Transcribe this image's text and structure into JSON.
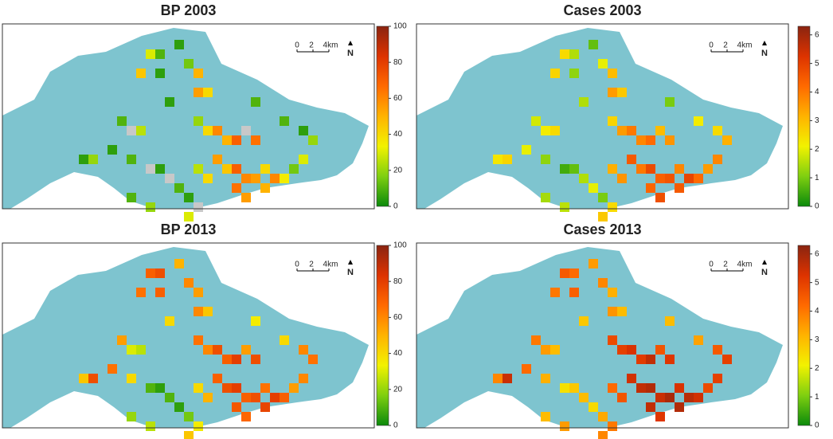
{
  "maps": [
    {
      "title": "BP 2003",
      "ylim": [
        0,
        100
      ],
      "yticks": [
        0,
        20,
        40,
        60,
        80,
        100
      ],
      "scale_labels": [
        "0",
        "2",
        "4km"
      ],
      "north": "N",
      "cells": [
        [
          15,
          2,
          30
        ],
        [
          16,
          2,
          10
        ],
        [
          18,
          1,
          5
        ],
        [
          19,
          3,
          15
        ],
        [
          14,
          4,
          45
        ],
        [
          16,
          4,
          5
        ],
        [
          20,
          4,
          50
        ],
        [
          20,
          6,
          55
        ],
        [
          21,
          6,
          40
        ],
        [
          17,
          7,
          5
        ],
        [
          26,
          7,
          10
        ],
        [
          12,
          9,
          10
        ],
        [
          13,
          10,
          null
        ],
        [
          14,
          10,
          25
        ],
        [
          20,
          9,
          20
        ],
        [
          21,
          10,
          40
        ],
        [
          22,
          10,
          60
        ],
        [
          23,
          11,
          50
        ],
        [
          24,
          11,
          70
        ],
        [
          25,
          10,
          null
        ],
        [
          26,
          11,
          65
        ],
        [
          29,
          9,
          10
        ],
        [
          31,
          10,
          5
        ],
        [
          32,
          11,
          20
        ],
        [
          11,
          12,
          5
        ],
        [
          8,
          13,
          5
        ],
        [
          9,
          13,
          20
        ],
        [
          13,
          13,
          10
        ],
        [
          15,
          14,
          null
        ],
        [
          16,
          14,
          5
        ],
        [
          17,
          15,
          null
        ],
        [
          18,
          16,
          10
        ],
        [
          19,
          17,
          5
        ],
        [
          20,
          18,
          null
        ],
        [
          15,
          18,
          20
        ],
        [
          22,
          13,
          55
        ],
        [
          23,
          14,
          45
        ],
        [
          24,
          14,
          70
        ],
        [
          25,
          15,
          60
        ],
        [
          26,
          15,
          55
        ],
        [
          27,
          14,
          40
        ],
        [
          28,
          15,
          60
        ],
        [
          29,
          15,
          35
        ],
        [
          24,
          16,
          65
        ],
        [
          25,
          17,
          55
        ],
        [
          27,
          16,
          50
        ],
        [
          30,
          14,
          15
        ],
        [
          31,
          13,
          30
        ],
        [
          20,
          14,
          25
        ],
        [
          21,
          15,
          40
        ],
        [
          19,
          19,
          30
        ],
        [
          13,
          17,
          10
        ]
      ]
    },
    {
      "title": "Cases 2003",
      "ylim": [
        0,
        6.3
      ],
      "yticks": [
        0,
        1,
        2,
        3,
        4,
        5,
        6
      ],
      "scale_labels": [
        "0",
        "2",
        "4km"
      ],
      "north": "N",
      "cells": [
        [
          15,
          2,
          2.5
        ],
        [
          16,
          2,
          1.5
        ],
        [
          18,
          1,
          0.8
        ],
        [
          19,
          3,
          2
        ],
        [
          14,
          4,
          2.6
        ],
        [
          16,
          4,
          1.2
        ],
        [
          20,
          4,
          3
        ],
        [
          20,
          6,
          3.5
        ],
        [
          21,
          6,
          2.8
        ],
        [
          17,
          7,
          1.5
        ],
        [
          26,
          7,
          1
        ],
        [
          12,
          9,
          1.8
        ],
        [
          13,
          10,
          2.2
        ],
        [
          14,
          10,
          2.5
        ],
        [
          20,
          9,
          2.6
        ],
        [
          21,
          10,
          3.5
        ],
        [
          22,
          10,
          4
        ],
        [
          23,
          11,
          3.8
        ],
        [
          24,
          11,
          4.2
        ],
        [
          25,
          10,
          3
        ],
        [
          26,
          11,
          3.6
        ],
        [
          29,
          9,
          2.2
        ],
        [
          31,
          10,
          2.5
        ],
        [
          32,
          11,
          3.2
        ],
        [
          11,
          12,
          2
        ],
        [
          8,
          13,
          2.3
        ],
        [
          9,
          13,
          2.6
        ],
        [
          13,
          13,
          1.2
        ],
        [
          15,
          14,
          0.5
        ],
        [
          16,
          14,
          0.8
        ],
        [
          17,
          15,
          1.5
        ],
        [
          18,
          16,
          2
        ],
        [
          19,
          17,
          1
        ],
        [
          20,
          18,
          2.5
        ],
        [
          15,
          18,
          1.6
        ],
        [
          22,
          13,
          4.5
        ],
        [
          23,
          14,
          4
        ],
        [
          24,
          14,
          4.8
        ],
        [
          25,
          15,
          4.4
        ],
        [
          26,
          15,
          4.6
        ],
        [
          27,
          14,
          3.8
        ],
        [
          28,
          15,
          4.9
        ],
        [
          29,
          15,
          4.2
        ],
        [
          24,
          16,
          4.3
        ],
        [
          25,
          17,
          4.7
        ],
        [
          27,
          16,
          4.5
        ],
        [
          30,
          14,
          3.5
        ],
        [
          31,
          13,
          3.8
        ],
        [
          20,
          14,
          3.2
        ],
        [
          21,
          15,
          3.6
        ],
        [
          19,
          19,
          2.8
        ],
        [
          13,
          17,
          1.4
        ]
      ]
    },
    {
      "title": "BP 2013",
      "ylim": [
        0,
        100
      ],
      "yticks": [
        0,
        20,
        40,
        60,
        80,
        100
      ],
      "scale_labels": [
        "0",
        "2",
        "4km"
      ],
      "north": "N",
      "cells": [
        [
          15,
          2,
          70
        ],
        [
          16,
          2,
          75
        ],
        [
          18,
          1,
          50
        ],
        [
          19,
          3,
          60
        ],
        [
          14,
          4,
          65
        ],
        [
          16,
          4,
          70
        ],
        [
          20,
          4,
          55
        ],
        [
          20,
          6,
          60
        ],
        [
          21,
          6,
          45
        ],
        [
          17,
          7,
          40
        ],
        [
          26,
          7,
          35
        ],
        [
          12,
          9,
          55
        ],
        [
          13,
          10,
          30
        ],
        [
          14,
          10,
          25
        ],
        [
          20,
          9,
          65
        ],
        [
          21,
          10,
          60
        ],
        [
          22,
          10,
          75
        ],
        [
          23,
          11,
          70
        ],
        [
          24,
          11,
          80
        ],
        [
          25,
          10,
          55
        ],
        [
          26,
          11,
          75
        ],
        [
          29,
          9,
          40
        ],
        [
          31,
          10,
          60
        ],
        [
          32,
          11,
          65
        ],
        [
          11,
          12,
          65
        ],
        [
          8,
          13,
          45
        ],
        [
          9,
          13,
          75
        ],
        [
          13,
          13,
          40
        ],
        [
          15,
          14,
          10
        ],
        [
          16,
          14,
          5
        ],
        [
          17,
          15,
          10
        ],
        [
          18,
          16,
          5
        ],
        [
          19,
          17,
          15
        ],
        [
          20,
          18,
          35
        ],
        [
          15,
          18,
          25
        ],
        [
          22,
          13,
          70
        ],
        [
          23,
          14,
          75
        ],
        [
          24,
          14,
          80
        ],
        [
          25,
          15,
          70
        ],
        [
          26,
          15,
          75
        ],
        [
          27,
          14,
          65
        ],
        [
          28,
          15,
          80
        ],
        [
          29,
          15,
          70
        ],
        [
          24,
          16,
          72
        ],
        [
          25,
          17,
          68
        ],
        [
          27,
          16,
          78
        ],
        [
          30,
          14,
          55
        ],
        [
          31,
          13,
          60
        ],
        [
          20,
          14,
          40
        ],
        [
          21,
          15,
          50
        ],
        [
          19,
          19,
          45
        ],
        [
          13,
          17,
          20
        ]
      ]
    },
    {
      "title": "Cases 2013",
      "ylim": [
        0,
        6.3
      ],
      "yticks": [
        0,
        1,
        2,
        3,
        4,
        5,
        6
      ],
      "scale_labels": [
        "0",
        "2",
        "4km"
      ],
      "north": "N",
      "cells": [
        [
          15,
          2,
          4.5
        ],
        [
          16,
          2,
          4.2
        ],
        [
          18,
          1,
          3.5
        ],
        [
          19,
          3,
          3.8
        ],
        [
          14,
          4,
          4
        ],
        [
          16,
          4,
          4.4
        ],
        [
          20,
          4,
          3.2
        ],
        [
          20,
          6,
          3.6
        ],
        [
          21,
          6,
          3
        ],
        [
          17,
          7,
          2.8
        ],
        [
          26,
          7,
          3
        ],
        [
          12,
          9,
          4
        ],
        [
          13,
          10,
          3.5
        ],
        [
          14,
          10,
          3
        ],
        [
          20,
          9,
          4.8
        ],
        [
          21,
          10,
          5
        ],
        [
          22,
          10,
          5.3
        ],
        [
          23,
          11,
          5.1
        ],
        [
          24,
          11,
          5.6
        ],
        [
          25,
          10,
          4.6
        ],
        [
          26,
          11,
          5.2
        ],
        [
          29,
          9,
          3.4
        ],
        [
          31,
          10,
          4.5
        ],
        [
          32,
          11,
          5
        ],
        [
          11,
          12,
          4.2
        ],
        [
          8,
          13,
          3.8
        ],
        [
          9,
          13,
          5.5
        ],
        [
          13,
          13,
          3.2
        ],
        [
          15,
          14,
          2.4
        ],
        [
          16,
          14,
          2.8
        ],
        [
          17,
          15,
          3
        ],
        [
          18,
          16,
          2.5
        ],
        [
          19,
          17,
          3.3
        ],
        [
          20,
          18,
          4
        ],
        [
          15,
          18,
          3.5
        ],
        [
          22,
          13,
          5.4
        ],
        [
          23,
          14,
          5.6
        ],
        [
          24,
          14,
          5.8
        ],
        [
          25,
          15,
          5.5
        ],
        [
          26,
          15,
          5.9
        ],
        [
          27,
          14,
          5.3
        ],
        [
          28,
          15,
          5.7
        ],
        [
          29,
          15,
          5.4
        ],
        [
          24,
          16,
          5.6
        ],
        [
          25,
          17,
          5.2
        ],
        [
          27,
          16,
          5.8
        ],
        [
          30,
          14,
          4.8
        ],
        [
          31,
          13,
          5
        ],
        [
          20,
          14,
          4.2
        ],
        [
          21,
          15,
          4.6
        ],
        [
          19,
          19,
          3.8
        ],
        [
          13,
          17,
          3
        ]
      ]
    }
  ],
  "colors": [
    "#0b8a0b",
    "#7fcf10",
    "#f2f200",
    "#ffb300",
    "#ff6a00",
    "#dd3300",
    "#8a2410"
  ],
  "na_color": "#c8c8c8",
  "land_color": "#7ec4cf"
}
